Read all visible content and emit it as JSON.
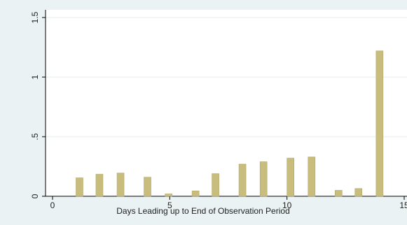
{
  "chart_data": {
    "type": "bar",
    "x_label": "Days Leading up to End of Observation Period",
    "x": [
      1.15,
      2.0,
      2.9,
      4.05,
      4.95,
      6.1,
      6.95,
      8.1,
      9.0,
      10.15,
      11.05,
      12.2,
      13.05,
      13.95
    ],
    "values": [
      0.155,
      0.185,
      0.195,
      0.16,
      0.02,
      0.045,
      0.19,
      0.27,
      0.29,
      0.32,
      0.33,
      0.05,
      0.065,
      1.22
    ],
    "color": "#c9bd7e",
    "xlim": [
      0,
      15
    ],
    "xticks": [
      0,
      5,
      10,
      15
    ],
    "ylim": [
      0,
      1.5
    ],
    "yticks": [
      0,
      {
        "value": 0.5,
        "label": ".5"
      },
      1,
      1.5
    ],
    "grid": true
  }
}
